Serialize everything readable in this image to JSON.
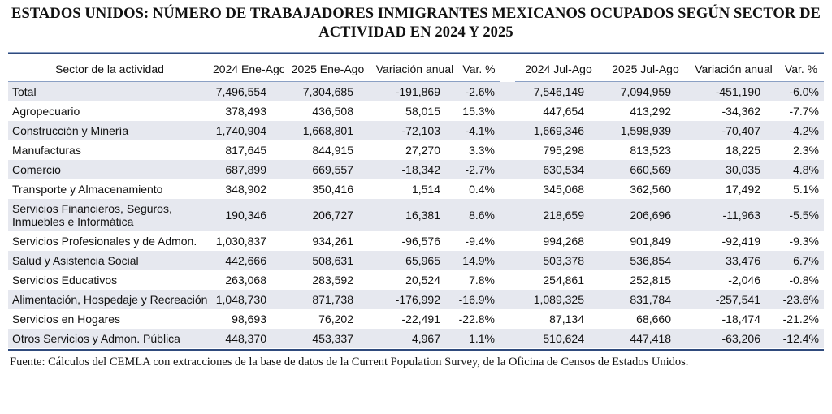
{
  "colors": {
    "stripe": "#e6e8ef",
    "rule_dark": "#2f4a7c",
    "rule_light": "#8ba0c4"
  },
  "chart_data": {
    "type": "table",
    "title": "ESTADOS UNIDOS: NÚMERO DE TRABAJADORES INMIGRANTES MEXICANOS OCUPADOS SEGÚN SECTOR DE ACTIVIDAD EN 2024 Y 2025",
    "columns": [
      "Sector de la actividad",
      "2024 Ene-Ago",
      "2025 Ene-Ago",
      "Variación anual",
      "Var. %",
      "2024 Jul-Ago",
      "2025 Jul-Ago",
      "Variación anual",
      "Var. %"
    ],
    "rows": [
      {
        "sector": "Total",
        "cells": [
          "7,496,554",
          "7,304,685",
          "-191,869",
          "-2.6%",
          "7,546,149",
          "7,094,959",
          "-451,190",
          "-6.0%"
        ]
      },
      {
        "sector": "Agropecuario",
        "cells": [
          "378,493",
          "436,508",
          "58,015",
          "15.3%",
          "447,654",
          "413,292",
          "-34,362",
          "-7.7%"
        ]
      },
      {
        "sector": "Construcción y Minería",
        "cells": [
          "1,740,904",
          "1,668,801",
          "-72,103",
          "-4.1%",
          "1,669,346",
          "1,598,939",
          "-70,407",
          "-4.2%"
        ]
      },
      {
        "sector": "Manufacturas",
        "cells": [
          "817,645",
          "844,915",
          "27,270",
          "3.3%",
          "795,298",
          "813,523",
          "18,225",
          "2.3%"
        ]
      },
      {
        "sector": "Comercio",
        "cells": [
          "687,899",
          "669,557",
          "-18,342",
          "-2.7%",
          "630,534",
          "660,569",
          "30,035",
          "4.8%"
        ]
      },
      {
        "sector": "Transporte y Almacenamiento",
        "cells": [
          "348,902",
          "350,416",
          "1,514",
          "0.4%",
          "345,068",
          "362,560",
          "17,492",
          "5.1%"
        ]
      },
      {
        "sector": "Servicios Financieros, Seguros, Inmuebles e Informática",
        "cells": [
          "190,346",
          "206,727",
          "16,381",
          "8.6%",
          "218,659",
          "206,696",
          "-11,963",
          "-5.5%"
        ]
      },
      {
        "sector": "Servicios Profesionales y de Admon.",
        "cells": [
          "1,030,837",
          "934,261",
          "-96,576",
          "-9.4%",
          "994,268",
          "901,849",
          "-92,419",
          "-9.3%"
        ]
      },
      {
        "sector": "Salud y Asistencia Social",
        "cells": [
          "442,666",
          "508,631",
          "65,965",
          "14.9%",
          "503,378",
          "536,854",
          "33,476",
          "6.7%"
        ]
      },
      {
        "sector": "Servicios Educativos",
        "cells": [
          "263,068",
          "283,592",
          "20,524",
          "7.8%",
          "254,861",
          "252,815",
          "-2,046",
          "-0.8%"
        ]
      },
      {
        "sector": "Alimentación, Hospedaje y Recreación",
        "cells": [
          "1,048,730",
          "871,738",
          "-176,992",
          "-16.9%",
          "1,089,325",
          "831,784",
          "-257,541",
          "-23.6%"
        ]
      },
      {
        "sector": "Servicios en Hogares",
        "cells": [
          "98,693",
          "76,202",
          "-22,491",
          "-22.8%",
          "87,134",
          "68,660",
          "-18,474",
          "-21.2%"
        ]
      },
      {
        "sector": "Otros Servicios y Admon. Pública",
        "cells": [
          "448,370",
          "453,337",
          "4,967",
          "1.1%",
          "510,624",
          "447,418",
          "-63,206",
          "-12.4%"
        ]
      }
    ],
    "source": "Fuente: Cálculos del CEMLA con extracciones de la base de datos de la Current Population Survey, de la Oficina de Censos de Estados Unidos.",
    "layout": {
      "striped_rows": "even",
      "column_group_gap_after": "Var. %",
      "period_groups": [
        "Ene-Ago",
        "Jul-Ago"
      ]
    }
  }
}
